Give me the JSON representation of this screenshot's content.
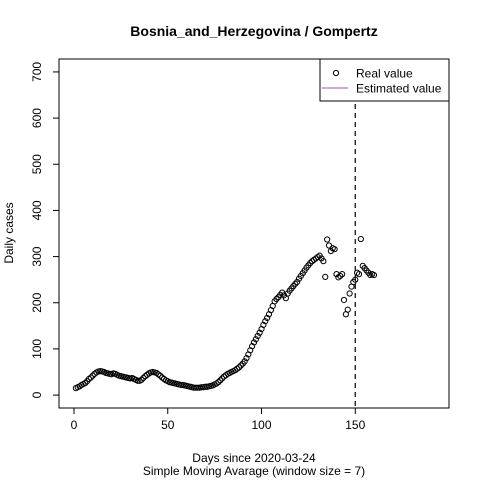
{
  "chart_data": {
    "type": "scatter",
    "title": "Bosnia_and_Herzegovina / Gompertz",
    "xlabel": "Days since 2020-03-24",
    "xlabel2": "Simple Moving Avarage (window size = 7)",
    "ylabel": "Daily cases",
    "xlim": [
      -8,
      200
    ],
    "ylim": [
      -28,
      728
    ],
    "x_ticks": [
      0,
      50,
      100,
      150
    ],
    "y_ticks": [
      0,
      100,
      200,
      300,
      400,
      500,
      600,
      700
    ],
    "x_tick_labels": [
      "0",
      "50",
      "100",
      "150"
    ],
    "y_tick_labels": [
      "0",
      "100",
      "200",
      "300",
      "400",
      "500",
      "600",
      "700"
    ],
    "vline_x": 150,
    "vline_style": "dashed",
    "grid": false,
    "legend_position": "top-right",
    "legend": [
      {
        "label": "Real value",
        "marker": "open-circle",
        "color": "#000000"
      },
      {
        "label": "Estimated value",
        "marker": "line",
        "color": "#9955bb"
      }
    ],
    "series": [
      {
        "name": "Real value",
        "marker": "open-circle",
        "color": "#000000",
        "x": [
          1,
          2,
          3,
          4,
          5,
          6,
          7,
          8,
          9,
          10,
          11,
          12,
          13,
          14,
          15,
          16,
          17,
          18,
          19,
          20,
          21,
          22,
          23,
          24,
          25,
          26,
          27,
          28,
          29,
          30,
          31,
          32,
          33,
          34,
          35,
          36,
          37,
          38,
          39,
          40,
          41,
          42,
          43,
          44,
          45,
          46,
          47,
          48,
          49,
          50,
          51,
          52,
          53,
          54,
          55,
          56,
          57,
          58,
          59,
          60,
          61,
          62,
          63,
          64,
          65,
          66,
          67,
          68,
          69,
          70,
          71,
          72,
          73,
          74,
          75,
          76,
          77,
          78,
          79,
          80,
          81,
          82,
          83,
          84,
          85,
          86,
          87,
          88,
          89,
          90,
          91,
          92,
          93,
          94,
          95,
          96,
          97,
          98,
          99,
          100,
          101,
          102,
          103,
          104,
          105,
          106,
          107,
          108,
          109,
          110,
          111,
          112,
          113,
          114,
          115,
          116,
          117,
          118,
          119,
          120,
          121,
          122,
          123,
          124,
          125,
          126,
          127,
          128,
          129,
          130,
          131,
          132,
          133,
          134,
          135,
          136,
          137,
          138,
          139,
          140,
          141,
          142,
          143,
          144,
          145,
          146,
          147,
          148,
          149,
          150,
          151,
          152,
          153,
          154,
          155,
          156,
          157,
          158,
          159,
          160
        ],
        "y": [
          15,
          17,
          19,
          22,
          24,
          26,
          30,
          35,
          38,
          42,
          46,
          49,
          51,
          52,
          51,
          50,
          48,
          47,
          46,
          45,
          47,
          46,
          44,
          42,
          41,
          40,
          39,
          38,
          37,
          36,
          37,
          35,
          33,
          31,
          31,
          33,
          37,
          41,
          44,
          47,
          49,
          50,
          49,
          48,
          45,
          42,
          38,
          35,
          32,
          30,
          28,
          27,
          26,
          25,
          24,
          23,
          22,
          22,
          21,
          20,
          19,
          18,
          17,
          16,
          16,
          16,
          16,
          17,
          17,
          18,
          18,
          19,
          20,
          21,
          23,
          25,
          28,
          32,
          36,
          40,
          43,
          46,
          48,
          50,
          52,
          54,
          57,
          60,
          64,
          68,
          73,
          80,
          88,
          97,
          106,
          114,
          121,
          128,
          135,
          143,
          152,
          160,
          167,
          175,
          184,
          193,
          203,
          208,
          212,
          217,
          222,
          216,
          210,
          220,
          226,
          231,
          236,
          241,
          245,
          252,
          258,
          264,
          270,
          276,
          281,
          286,
          290,
          293,
          296,
          299,
          302,
          296,
          290,
          256,
          337,
          324,
          312,
          318,
          316,
          262,
          255,
          258,
          262,
          206,
          175,
          185,
          220,
          235,
          245,
          250,
          265,
          262,
          338,
          280,
          275,
          270,
          265,
          260,
          262,
          260
        ]
      }
    ]
  }
}
